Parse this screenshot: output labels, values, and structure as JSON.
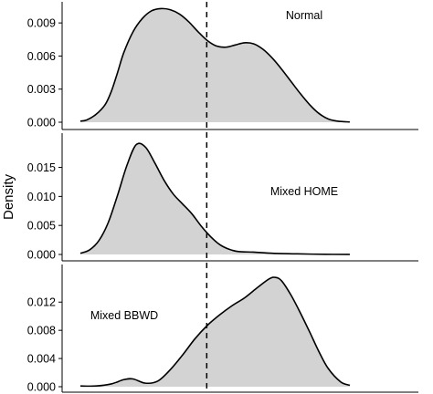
{
  "chart_data": {
    "type": "area",
    "subtype": "stacked-panel density plot",
    "ylabel": "Density",
    "xlabel": "",
    "x_range": [
      0,
      1
    ],
    "x_ticks_labeled": false,
    "reference_line": {
      "x": 0.408,
      "style": "dashed"
    },
    "fill_color": "#d3d3d3",
    "line_color": "#000000",
    "grid": false,
    "legend": "none",
    "panels": [
      {
        "label": "Normal",
        "ylim": [
          0,
          0.0105
        ],
        "yticks": [
          0,
          0.003,
          0.006,
          0.009
        ],
        "ytick_labels": [
          "0.000",
          "0.003",
          "0.006",
          "0.009"
        ],
        "x": [
          0,
          0.02,
          0.05,
          0.08,
          0.1,
          0.12,
          0.14,
          0.17,
          0.2,
          0.23,
          0.26,
          0.29,
          0.32,
          0.35,
          0.38,
          0.41,
          0.44,
          0.47,
          0.5,
          0.53,
          0.56,
          0.59,
          0.62,
          0.65,
          0.68,
          0.71,
          0.74,
          0.77,
          0.8,
          0.83,
          0.87
        ],
        "y": [
          0.0001,
          0.0002,
          0.0007,
          0.0016,
          0.0028,
          0.0045,
          0.0063,
          0.0082,
          0.0094,
          0.0101,
          0.0103,
          0.0102,
          0.0098,
          0.0091,
          0.0082,
          0.0074,
          0.0069,
          0.0068,
          0.007,
          0.0072,
          0.0071,
          0.0066,
          0.0058,
          0.0048,
          0.0037,
          0.0026,
          0.0016,
          0.0008,
          0.0003,
          0.0001,
          2e-05
        ]
      },
      {
        "label": "Mixed HOME",
        "ylim": [
          0,
          0.0198
        ],
        "yticks": [
          0,
          0.005,
          0.01,
          0.015
        ],
        "ytick_labels": [
          "0.000",
          "0.005",
          "0.010",
          "0.015"
        ],
        "x": [
          0,
          0.03,
          0.06,
          0.09,
          0.12,
          0.15,
          0.18,
          0.21,
          0.24,
          0.27,
          0.3,
          0.33,
          0.36,
          0.39,
          0.42,
          0.45,
          0.48,
          0.51,
          0.56,
          0.62,
          0.7,
          0.79,
          0.87
        ],
        "y": [
          0.0002,
          0.0008,
          0.0024,
          0.0055,
          0.0102,
          0.0153,
          0.0189,
          0.0185,
          0.0158,
          0.0128,
          0.0104,
          0.0087,
          0.007,
          0.0049,
          0.0031,
          0.0017,
          0.0009,
          0.0005,
          0.0004,
          0.0002,
          0.0001,
          3e-05,
          1e-05
        ]
      },
      {
        "label": "Mixed BBWD",
        "ylim": [
          0,
          0.0163
        ],
        "yticks": [
          0,
          0.004,
          0.008,
          0.012
        ],
        "ytick_labels": [
          "0.000",
          "0.004",
          "0.008",
          "0.012"
        ],
        "x": [
          0,
          0.05,
          0.1,
          0.14,
          0.17,
          0.21,
          0.25,
          0.29,
          0.33,
          0.37,
          0.41,
          0.45,
          0.49,
          0.53,
          0.57,
          0.61,
          0.63,
          0.65,
          0.68,
          0.71,
          0.74,
          0.77,
          0.8,
          0.84,
          0.87
        ],
        "y": [
          0.0001,
          0.0001,
          0.0004,
          0.001,
          0.0011,
          0.0005,
          0.0008,
          0.0024,
          0.0045,
          0.0068,
          0.0087,
          0.0102,
          0.0115,
          0.0126,
          0.014,
          0.0153,
          0.0155,
          0.015,
          0.013,
          0.0105,
          0.0078,
          0.005,
          0.0026,
          0.0007,
          0.0002
        ]
      }
    ]
  }
}
